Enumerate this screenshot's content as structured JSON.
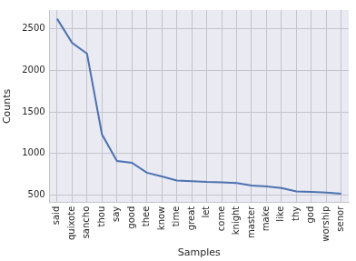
{
  "chart_data": {
    "type": "line",
    "x_label": "Samples",
    "y_label": "Counts",
    "categories": [
      "said",
      "quixote",
      "sancho",
      "thou",
      "say",
      "good",
      "thee",
      "know",
      "time",
      "great",
      "let",
      "come",
      "knight",
      "master",
      "make",
      "like",
      "thy",
      "god",
      "worship",
      "senor"
    ],
    "values": [
      2620,
      2330,
      2200,
      1230,
      910,
      890,
      770,
      725,
      675,
      668,
      658,
      653,
      645,
      615,
      605,
      585,
      545,
      538,
      530,
      516
    ],
    "color": "#4c72b0",
    "ylim": [
      411,
      2725
    ],
    "yticks": [
      500,
      1000,
      1500,
      2000,
      2500
    ],
    "grid": true
  }
}
